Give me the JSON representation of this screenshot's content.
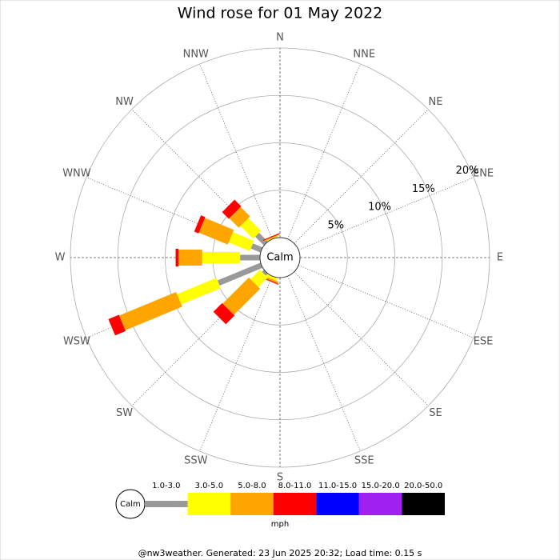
{
  "chart_data": {
    "type": "windrose",
    "title": "Wind rose for 01 May 2022",
    "directions": [
      "N",
      "NNE",
      "NE",
      "ENE",
      "E",
      "ESE",
      "SE",
      "SSE",
      "S",
      "SSW",
      "SW",
      "WSW",
      "W",
      "WNW",
      "NW",
      "NNW"
    ],
    "center_label": "Calm",
    "units": "mph",
    "footer": "@nw3weather. Generated: 23 Jun 2025 20:32; Load time: 0.15 s",
    "rlim": [
      0,
      20
    ],
    "rticks": [
      {
        "value": 5,
        "label": "5%"
      },
      {
        "value": 10,
        "label": "10%"
      },
      {
        "value": 15,
        "label": "15%"
      },
      {
        "value": 20,
        "label": "20%"
      }
    ],
    "series": [
      {
        "name": "1.0-3.0",
        "color": "#999999",
        "values": [
          0,
          0,
          0,
          0,
          0,
          0,
          0,
          0,
          0,
          0,
          0.3,
          4.9,
          2.1,
          1.1,
          1.3,
          0
        ]
      },
      {
        "name": "3.0-5.0",
        "color": "#ffff00",
        "values": [
          0,
          0,
          0,
          0,
          0,
          0,
          0,
          0,
          0,
          0.3,
          1.4,
          4.5,
          4.0,
          2.4,
          1.9,
          0.1
        ]
      },
      {
        "name": "5.0-8.0",
        "color": "#ffa500",
        "values": [
          0,
          0,
          0,
          0,
          0,
          0,
          0,
          0,
          0,
          0.2,
          3.9,
          6.5,
          2.5,
          3.3,
          1.4,
          0.1
        ]
      },
      {
        "name": "8.0-11.0",
        "color": "#ff0000",
        "values": [
          0,
          0,
          0,
          0,
          0,
          0,
          0,
          0,
          0,
          0.1,
          1.3,
          1.2,
          0.3,
          0.5,
          1.0,
          0.1
        ]
      },
      {
        "name": "11.0-15.0",
        "color": "#0000ff",
        "values": [
          0,
          0,
          0,
          0,
          0,
          0,
          0,
          0,
          0,
          0,
          0,
          0,
          0,
          0,
          0,
          0
        ]
      },
      {
        "name": "15.0-20.0",
        "color": "#a020f0",
        "values": [
          0,
          0,
          0,
          0,
          0,
          0,
          0,
          0,
          0,
          0,
          0,
          0,
          0,
          0,
          0,
          0
        ]
      },
      {
        "name": "20.0-50.0",
        "color": "#000000",
        "values": [
          0,
          0,
          0,
          0,
          0,
          0,
          0,
          0,
          0,
          0,
          0,
          0,
          0,
          0,
          0,
          0
        ]
      }
    ]
  }
}
